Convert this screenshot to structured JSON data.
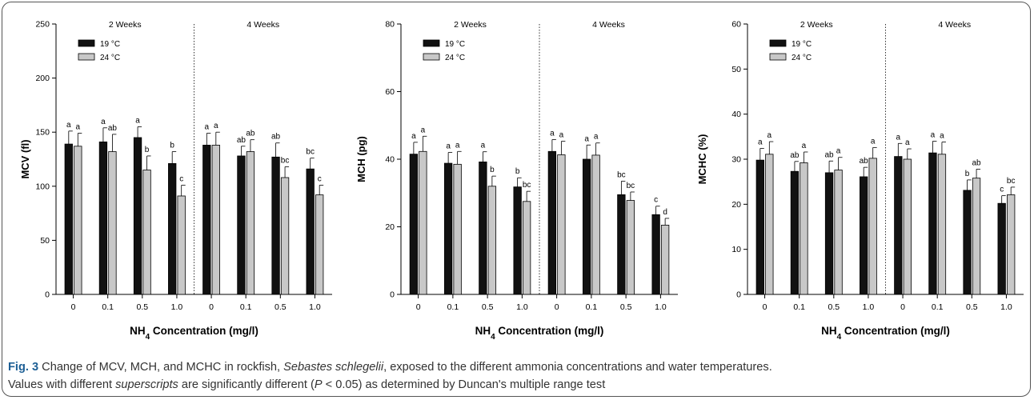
{
  "legend": {
    "series": [
      "19 °C",
      "24 °C"
    ],
    "colors": [
      "#111111",
      "#c8c8c8"
    ]
  },
  "caption": {
    "label": "Fig. 3",
    "line1_a": " Change of MCV, MCH, and MCHC in rockfish, ",
    "species": "Sebastes schlegelii",
    "line1_b": ", exposed to the different ammonia concentrations and water temperatures.",
    "line2_a": "Values with different ",
    "superscripts": "superscripts",
    "line2_b": " are significantly different (",
    "p": "P",
    "line2_c": " < 0.05) as determined by Duncan's multiple range test"
  },
  "chart_data": [
    {
      "type": "bar",
      "ylabel": "MCV (fl)",
      "xlabel": "NH4 Concentration (mg/l)",
      "ylim": [
        0,
        250
      ],
      "yticks": [
        0,
        50,
        100,
        150,
        200,
        250
      ],
      "panels": [
        "2 Weeks",
        "4 Weeks"
      ],
      "categories": [
        "0",
        "0.1",
        "0.5",
        "1.0",
        "0",
        "0.1",
        "0.5",
        "1.0"
      ],
      "series": [
        {
          "name": "19 °C",
          "values": [
            139,
            141,
            145,
            121,
            138,
            128,
            127,
            116
          ],
          "errors": [
            12,
            13,
            10,
            11,
            11,
            9,
            13,
            10
          ],
          "letters": [
            "a",
            "a",
            "a",
            "b",
            "a",
            "ab",
            "ab",
            "bc"
          ]
        },
        {
          "name": "24 °C",
          "values": [
            137,
            132,
            115,
            91,
            138,
            132,
            108,
            92
          ],
          "errors": [
            12,
            16,
            13,
            10,
            12,
            11,
            10,
            9
          ],
          "letters": [
            "a",
            "ab",
            "b",
            "c",
            "a",
            "ab",
            "bc",
            "c"
          ]
        }
      ]
    },
    {
      "type": "bar",
      "ylabel": "MCH (pg)",
      "xlabel": "NH4 Concentration (mg/l)",
      "ylim": [
        0,
        80
      ],
      "yticks": [
        0,
        20,
        40,
        60,
        80
      ],
      "panels": [
        "2 Weeks",
        "4 Weeks"
      ],
      "categories": [
        "0",
        "0.1",
        "0.5",
        "1.0",
        "0",
        "0.1",
        "0.5",
        "1.0"
      ],
      "series": [
        {
          "name": "19 °C",
          "values": [
            41.5,
            38.8,
            39.2,
            31.8,
            42.3,
            40,
            29.5,
            23.6
          ],
          "errors": [
            3.5,
            3.2,
            3,
            2.7,
            3.5,
            4.2,
            4,
            2.5
          ],
          "letters": [
            "a",
            "a",
            "a",
            "b",
            "a",
            "a",
            "bc",
            "c"
          ]
        },
        {
          "name": "24 °C",
          "values": [
            42.3,
            38.5,
            32,
            27.5,
            41.3,
            41.2,
            27.8,
            20.5
          ],
          "errors": [
            4.5,
            3.8,
            3,
            3,
            4,
            3.6,
            2.5,
            2
          ],
          "letters": [
            "a",
            "a",
            "b",
            "bc",
            "a",
            "a",
            "bc",
            "d"
          ]
        }
      ]
    },
    {
      "type": "bar",
      "ylabel": "MCHC (%)",
      "xlabel": "NH4 Concentration (mg/l)",
      "ylim": [
        0,
        60
      ],
      "yticks": [
        0,
        10,
        20,
        30,
        40,
        50,
        60
      ],
      "panels": [
        "2 Weeks",
        "4 Weeks"
      ],
      "categories": [
        "0",
        "0.1",
        "0.5",
        "1.0",
        "0",
        "0.1",
        "0.5",
        "1.0"
      ],
      "series": [
        {
          "name": "19 °C",
          "values": [
            29.8,
            27.3,
            27,
            26.1,
            30.6,
            31.4,
            23.1,
            20.2
          ],
          "errors": [
            2.6,
            2.2,
            2.6,
            2.1,
            2.9,
            2.6,
            2.3,
            1.7
          ],
          "letters": [
            "a",
            "ab",
            "ab",
            "ab",
            "a",
            "a",
            "b",
            "c"
          ]
        },
        {
          "name": "24 °C",
          "values": [
            31.1,
            29.2,
            27.6,
            30.2,
            30,
            31.1,
            25.8,
            22.1
          ],
          "errors": [
            2.8,
            2.4,
            2.8,
            2.4,
            2.3,
            2.7,
            2,
            1.7
          ],
          "letters": [
            "a",
            "a",
            "a",
            "a",
            "a",
            "a",
            "ab",
            "bc"
          ]
        }
      ]
    }
  ]
}
